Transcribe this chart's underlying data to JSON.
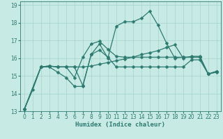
{
  "xlabel": "Humidex (Indice chaleur)",
  "bg_color": "#c8eae5",
  "grid_color": "#a8d8d0",
  "line_color": "#2d7a70",
  "xlim": [
    -0.5,
    23.5
  ],
  "ylim": [
    13,
    19.2
  ],
  "yticks": [
    13,
    14,
    15,
    16,
    17,
    18,
    19
  ],
  "xticks": [
    0,
    1,
    2,
    3,
    4,
    5,
    6,
    7,
    8,
    9,
    10,
    11,
    12,
    13,
    14,
    15,
    16,
    17,
    18,
    19,
    20,
    21,
    22,
    23
  ],
  "series1_x": [
    0,
    1,
    2,
    3,
    4,
    5,
    6,
    7,
    8,
    9,
    10,
    11,
    12,
    13,
    14,
    15,
    16,
    17,
    18,
    19,
    20,
    21,
    22,
    23
  ],
  "series1_y": [
    13.1,
    14.2,
    15.5,
    15.5,
    15.2,
    14.9,
    14.4,
    14.4,
    16.2,
    16.8,
    16.0,
    17.8,
    18.05,
    18.05,
    18.25,
    18.65,
    17.85,
    16.85,
    16.0,
    16.05,
    16.05,
    16.05,
    15.1,
    15.2
  ],
  "series2_x": [
    0,
    2,
    3,
    4,
    5,
    6,
    7,
    8,
    9,
    10,
    11,
    12,
    13,
    14,
    15,
    16,
    17,
    18,
    19,
    20,
    21,
    22,
    23
  ],
  "series2_y": [
    13.1,
    15.5,
    15.55,
    15.5,
    15.5,
    15.5,
    15.5,
    15.55,
    15.65,
    15.75,
    15.85,
    15.95,
    16.05,
    16.2,
    16.3,
    16.42,
    16.6,
    16.75,
    16.0,
    16.1,
    16.1,
    15.1,
    15.25
  ],
  "series3_x": [
    0,
    2,
    3,
    4,
    5,
    6,
    7,
    8,
    9,
    10,
    11,
    12,
    13,
    14,
    15,
    16,
    17,
    18,
    19,
    20,
    21,
    22,
    23
  ],
  "series3_y": [
    13.1,
    15.5,
    15.55,
    15.5,
    15.5,
    15.5,
    14.45,
    16.2,
    16.45,
    16.05,
    15.5,
    15.5,
    15.5,
    15.5,
    15.5,
    15.5,
    15.5,
    15.5,
    15.5,
    15.9,
    15.9,
    15.1,
    15.25
  ],
  "series4_x": [
    0,
    2,
    3,
    4,
    5,
    6,
    7,
    8,
    9,
    10,
    11,
    12,
    13,
    14,
    15,
    16,
    17,
    18,
    19,
    20,
    21,
    22,
    23
  ],
  "series4_y": [
    13.1,
    15.5,
    15.55,
    15.5,
    15.5,
    14.9,
    16.05,
    16.8,
    16.95,
    16.5,
    16.1,
    16.05,
    16.05,
    16.05,
    16.05,
    16.05,
    16.05,
    16.05,
    16.05,
    16.05,
    16.05,
    15.1,
    15.25
  ],
  "markersize": 2.5,
  "linewidth": 0.9
}
